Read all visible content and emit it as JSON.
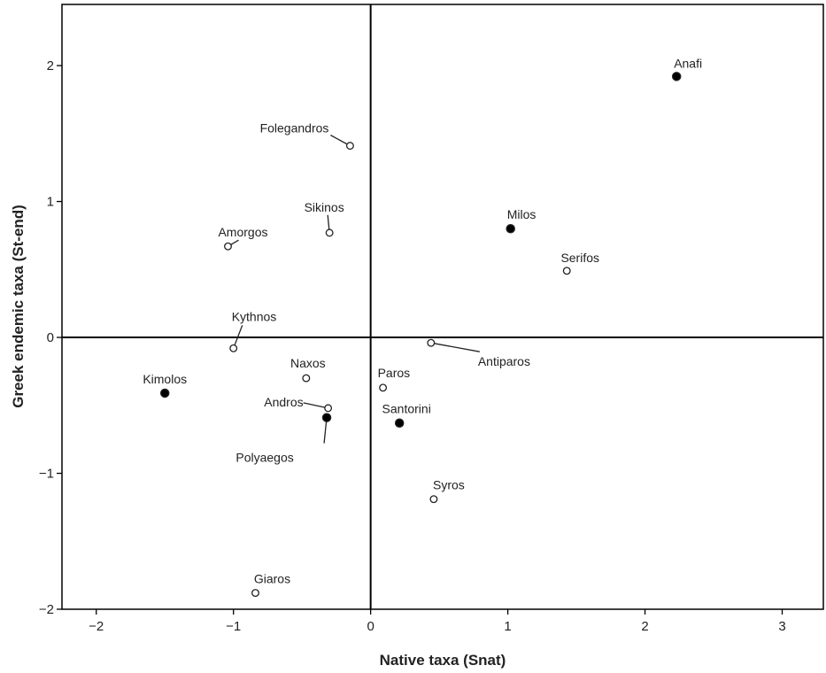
{
  "chart_data": {
    "type": "scatter",
    "title": "",
    "xlabel": "Native taxa (Snat)",
    "ylabel": "Greek endemic taxa (St-end)",
    "xlim": [
      -2.25,
      3.3
    ],
    "ylim": [
      -2.0,
      2.45
    ],
    "xticks": [
      -2,
      -1,
      0,
      1,
      2,
      3
    ],
    "yticks": [
      -2,
      -1,
      0,
      1,
      2
    ],
    "xtick_labels": [
      "−2",
      "−1",
      "0",
      "1",
      "2",
      "3"
    ],
    "ytick_labels": [
      "−2",
      "−1",
      "0",
      "1",
      "2"
    ],
    "reference_lines": {
      "x": 0,
      "y": 0
    },
    "grid": false,
    "legend": "none",
    "marker_styles": {
      "filled": "#000000",
      "open": "#ffffff"
    },
    "points": [
      {
        "label": "Anafi",
        "x": 2.23,
        "y": 1.92,
        "marker": "filled"
      },
      {
        "label": "Folegandros",
        "x": -0.15,
        "y": 1.41,
        "marker": "open"
      },
      {
        "label": "Milos",
        "x": 1.02,
        "y": 0.8,
        "marker": "filled"
      },
      {
        "label": "Sikinos",
        "x": -0.3,
        "y": 0.77,
        "marker": "open"
      },
      {
        "label": "Amorgos",
        "x": -1.04,
        "y": 0.67,
        "marker": "open"
      },
      {
        "label": "Serifos",
        "x": 1.43,
        "y": 0.49,
        "marker": "open"
      },
      {
        "label": "Kythnos",
        "x": -1.0,
        "y": -0.08,
        "marker": "open"
      },
      {
        "label": "Antiparos",
        "x": 0.44,
        "y": -0.04,
        "marker": "open"
      },
      {
        "label": "Naxos",
        "x": -0.47,
        "y": -0.3,
        "marker": "open"
      },
      {
        "label": "Paros",
        "x": 0.09,
        "y": -0.37,
        "marker": "open"
      },
      {
        "label": "Kimolos",
        "x": -1.5,
        "y": -0.41,
        "marker": "filled"
      },
      {
        "label": "Andros",
        "x": -0.31,
        "y": -0.52,
        "marker": "open"
      },
      {
        "label": "Polyaegos",
        "x": -0.32,
        "y": -0.59,
        "marker": "filled"
      },
      {
        "label": "Santorini",
        "x": 0.21,
        "y": -0.63,
        "marker": "filled"
      },
      {
        "label": "Syros",
        "x": 0.46,
        "y": -1.19,
        "marker": "open"
      },
      {
        "label": "Giaros",
        "x": -0.84,
        "y": -1.88,
        "marker": "open"
      }
    ]
  }
}
